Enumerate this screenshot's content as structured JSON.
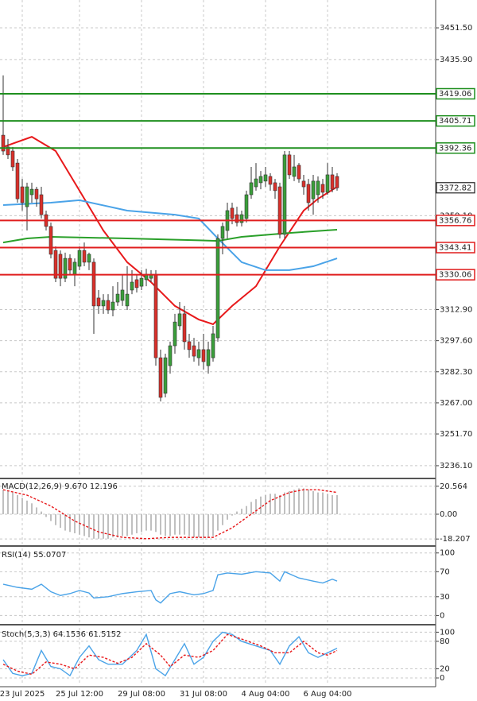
{
  "chart_data": [
    {
      "type": "candlestick",
      "categories": [
        null,
        null,
        null,
        null,
        "23 Jul 2025",
        null,
        null,
        null,
        null,
        null,
        null,
        null,
        null,
        null,
        null,
        null,
        "25 Jul 12:00",
        null,
        null,
        null,
        null,
        null,
        null,
        null,
        null,
        null,
        null,
        null,
        null,
        "29 Jul 08:00",
        null,
        null,
        null,
        null,
        null,
        null,
        null,
        null,
        null,
        null,
        null,
        null,
        "31 Jul 08:00",
        null,
        null,
        null,
        null,
        null,
        null,
        null,
        null,
        null,
        null,
        null,
        null,
        "4 Aug 04:00",
        null,
        null,
        null,
        null,
        null,
        null,
        null,
        null,
        null,
        null,
        null,
        null,
        "6 Aug 04:00",
        null,
        null
      ],
      "open": [
        3398.7,
        3392.9,
        3390.9,
        3385.0,
        3373.3,
        3363.5,
        3369.4,
        3372.1,
        3369.4,
        3359.6,
        3353.8,
        3342.0,
        3340.1,
        3328.3,
        3338.1,
        3330.3,
        3334.2,
        3342.0,
        3336.2,
        3336.2,
        3318.6,
        3314.7,
        3317.4,
        3312.7,
        3316.6,
        3317.4,
        3314.7,
        3322.5,
        3327.6,
        3324.4,
        3327.6,
        3328.3,
        3330.3,
        3289.2,
        3271.7,
        3285.3,
        3295.1,
        3304.9,
        3310.8,
        3297.1,
        3295.1,
        3289.2,
        3293.2,
        3285.3,
        3289.2,
        3299.0,
        3347.9,
        3351.8,
        3362.8,
        3359.6,
        3355.7,
        3357.7,
        3369.4,
        3373.3,
        3375.3,
        3376.1,
        3378.4,
        3375.3,
        3373.3,
        3349.9,
        3389.0,
        3378.4,
        3383.9,
        3376.1,
        3374.5,
        3367.4,
        3369.4,
        3374.5,
        3370.6,
        3379.2,
        3378.4
      ],
      "high": [
        3428.1,
        3396.8,
        3392.9,
        3387.0,
        3377.2,
        3375.3,
        3375.3,
        3373.3,
        3373.3,
        3361.6,
        3355.7,
        3344.0,
        3342.0,
        3340.9,
        3340.1,
        3338.1,
        3344.0,
        3345.9,
        3340.9,
        3338.1,
        3322.5,
        3320.5,
        3320.5,
        3324.4,
        3326.4,
        3330.3,
        3334.2,
        3332.3,
        3330.3,
        3332.3,
        3333.0,
        3332.3,
        3332.3,
        3293.2,
        3291.2,
        3297.1,
        3310.8,
        3316.6,
        3314.7,
        3301.0,
        3299.0,
        3297.1,
        3301.0,
        3297.1,
        3304.9,
        3349.9,
        3355.7,
        3365.5,
        3365.5,
        3363.5,
        3361.6,
        3371.4,
        3383.1,
        3385.0,
        3381.1,
        3383.1,
        3380.0,
        3377.2,
        3375.3,
        3390.9,
        3390.9,
        3389.0,
        3385.0,
        3379.2,
        3377.2,
        3379.2,
        3378.4,
        3377.2,
        3385.0,
        3383.1,
        3380.0
      ],
      "low": [
        3389.0,
        3387.0,
        3381.1,
        3365.5,
        3361.6,
        3351.8,
        3365.5,
        3363.5,
        3357.7,
        3351.8,
        3338.1,
        3326.4,
        3324.4,
        3326.4,
        3330.3,
        3324.4,
        3332.3,
        3334.2,
        3332.3,
        3301.0,
        3310.8,
        3310.8,
        3310.8,
        3309.6,
        3314.7,
        3314.7,
        3312.7,
        3320.5,
        3321.3,
        3322.5,
        3324.4,
        3326.4,
        3285.3,
        3267.7,
        3269.7,
        3281.4,
        3291.2,
        3302.9,
        3293.2,
        3289.2,
        3287.3,
        3285.3,
        3283.4,
        3281.4,
        3287.3,
        3297.1,
        3340.1,
        3347.9,
        3354.9,
        3353.8,
        3353.8,
        3355.7,
        3367.4,
        3371.4,
        3372.1,
        3373.3,
        3371.4,
        3367.4,
        3347.9,
        3347.9,
        3377.2,
        3376.1,
        3375.3,
        3369.4,
        3361.6,
        3359.6,
        3365.5,
        3367.4,
        3369.4,
        3370.6,
        3371.4
      ],
      "close": [
        3390.9,
        3389.0,
        3383.1,
        3367.4,
        3365.5,
        3373.3,
        3372.1,
        3367.4,
        3359.6,
        3353.8,
        3340.1,
        3328.3,
        3328.3,
        3338.1,
        3332.3,
        3336.2,
        3342.0,
        3336.2,
        3340.1,
        3314.7,
        3314.7,
        3317.4,
        3312.7,
        3316.6,
        3320.5,
        3322.5,
        3320.5,
        3326.4,
        3323.7,
        3328.3,
        3330.3,
        3330.3,
        3289.2,
        3269.7,
        3289.2,
        3295.1,
        3306.8,
        3310.8,
        3297.1,
        3293.2,
        3290.0,
        3293.2,
        3287.3,
        3293.2,
        3301.0,
        3347.9,
        3353.8,
        3361.6,
        3357.7,
        3355.7,
        3359.6,
        3369.4,
        3375.3,
        3377.2,
        3378.4,
        3379.2,
        3374.5,
        3371.4,
        3349.9,
        3389.0,
        3379.2,
        3383.1,
        3377.2,
        3373.3,
        3365.5,
        3376.1,
        3376.1,
        3370.6,
        3379.2,
        3372.1,
        3372.8
      ],
      "up_color": "#3a9e3a",
      "down_color": "#d9302a",
      "ylim": [
        3230.6,
        3465.2
      ],
      "yticks": [
        {
          "value": 3451.5,
          "label": "3451.50"
        },
        {
          "value": 3435.9,
          "label": "3435.90"
        },
        {
          "value": 3359.1,
          "label": "3359.10"
        },
        {
          "value": 3312.9,
          "label": "3312.90"
        },
        {
          "value": 3297.6,
          "label": "3297.60"
        },
        {
          "value": 3282.3,
          "label": "3282.30"
        },
        {
          "value": 3267.0,
          "label": "3267.00"
        },
        {
          "value": 3251.7,
          "label": "3251.70"
        },
        {
          "value": 3236.1,
          "label": "3236.10"
        }
      ],
      "grid": true,
      "overlays": [
        {
          "color": "#e8191b",
          "x": [
            0,
            6,
            11,
            16,
            21,
            26,
            31,
            36,
            41,
            44,
            48,
            53,
            58,
            63,
            66,
            70
          ],
          "values": [
            3392.9,
            3397.9,
            3390.9,
            3371.4,
            3351.8,
            3336.2,
            3326.4,
            3314.7,
            3308.0,
            3305.7,
            3314.7,
            3324.4,
            3344.0,
            3361.6,
            3367.4,
            3373.3
          ]
        },
        {
          "color": "#4aa3e8",
          "x": [
            0,
            10,
            16,
            26,
            36,
            41,
            45,
            50,
            55,
            60,
            65,
            70
          ],
          "values": [
            3364.3,
            3365.5,
            3366.7,
            3361.6,
            3359.6,
            3357.7,
            3347.9,
            3336.2,
            3332.3,
            3332.3,
            3334.2,
            3338.1
          ]
        },
        {
          "color": "#2aa02a",
          "x": [
            0,
            5,
            10,
            26,
            45,
            50,
            60,
            70
          ],
          "values": [
            3345.9,
            3347.9,
            3348.7,
            3347.9,
            3346.7,
            3348.7,
            3350.6,
            3352.2
          ]
        }
      ],
      "levels": [
        {
          "value": 3419.06,
          "color": "#1f8f1f"
        },
        {
          "value": 3405.71,
          "color": "#1f8f1f"
        },
        {
          "value": 3392.36,
          "color": "#1f8f1f"
        },
        {
          "value": 3356.76,
          "color": "#e01e1e"
        },
        {
          "value": 3343.41,
          "color": "#e01e1e"
        },
        {
          "value": 3330.06,
          "color": "#e01e1e"
        }
      ],
      "last_price": 3372.82
    },
    {
      "type": "macd",
      "title": "MACD(12,26,9) 9.670 12.196",
      "ylim": [
        -22.77,
        25.1
      ],
      "yticks": [
        20.564,
        {
          "value": 0,
          "label": "0.00"
        },
        -18.207
      ],
      "histogram": {
        "color": "#b0b0b0",
        "values": [
          18,
          17,
          16,
          14,
          12,
          10,
          8,
          5,
          2,
          -2,
          -5,
          -8,
          -10,
          -12,
          -13,
          -14,
          -15,
          -16,
          -17,
          -18,
          -18,
          -18,
          -18,
          -17,
          -17,
          -16,
          -16,
          -15,
          -14,
          -13,
          -12,
          -12,
          -13,
          -15,
          -16,
          -16,
          -15,
          -15,
          -15,
          -16,
          -17,
          -17,
          -17,
          -17,
          -16,
          -12,
          -8,
          -4,
          -1,
          2,
          4,
          6,
          9,
          11,
          13,
          14,
          15,
          15,
          14,
          16,
          17,
          18,
          19,
          19,
          18,
          17,
          16,
          16,
          15,
          14,
          14
        ]
      },
      "series": [
        {
          "color": "#e8191b",
          "dashed": true,
          "x": [
            0,
            5,
            10,
            15,
            20,
            25,
            30,
            35,
            40,
            44,
            48,
            52,
            56,
            60,
            63,
            66,
            70
          ],
          "values": [
            18,
            14,
            6,
            -5,
            -13,
            -17,
            -18,
            -17,
            -17,
            -17,
            -10,
            0,
            10,
            16,
            18,
            18,
            16
          ]
        }
      ]
    },
    {
      "type": "line",
      "title": "RSI(14) 55.0707",
      "ylim": [
        -12.2,
        107.3
      ],
      "yticks": [
        100,
        70,
        30,
        0
      ],
      "series": [
        {
          "color": "#4aa3e8",
          "x": [
            0,
            3,
            6,
            8,
            10,
            12,
            14,
            16,
            18,
            19,
            22,
            25,
            28,
            31,
            32,
            33,
            35,
            37,
            40,
            42,
            44,
            45,
            47,
            50,
            53,
            56,
            58,
            59,
            62,
            65,
            67,
            69,
            70
          ],
          "values": [
            50,
            45,
            42,
            50,
            38,
            32,
            35,
            40,
            36,
            28,
            30,
            35,
            38,
            40,
            25,
            20,
            35,
            38,
            33,
            35,
            40,
            65,
            68,
            66,
            70,
            68,
            55,
            70,
            60,
            55,
            52,
            58,
            55
          ]
        }
      ]
    },
    {
      "type": "line",
      "title": "Stoch(5,3,3) 64.1536 61.5152",
      "ylim": [
        -15.6,
        109.4
      ],
      "yticks": [
        100,
        80,
        20,
        0
      ],
      "series": [
        {
          "color": "#4aa3e8",
          "x": [
            0,
            2,
            4,
            6,
            8,
            10,
            12,
            14,
            16,
            18,
            20,
            22,
            25,
            28,
            30,
            32,
            34,
            36,
            38,
            40,
            42,
            44,
            46,
            48,
            50,
            53,
            56,
            58,
            60,
            62,
            64,
            66,
            68,
            70
          ],
          "values": [
            40,
            10,
            5,
            10,
            60,
            25,
            20,
            5,
            45,
            70,
            40,
            30,
            30,
            60,
            95,
            20,
            5,
            40,
            75,
            30,
            45,
            80,
            100,
            95,
            80,
            70,
            60,
            30,
            70,
            90,
            55,
            45,
            55,
            65
          ]
        },
        {
          "color": "#e8191b",
          "dashed": true,
          "x": [
            0,
            3,
            6,
            9,
            12,
            15,
            18,
            21,
            24,
            27,
            30,
            33,
            35,
            38,
            41,
            44,
            47,
            50,
            54,
            57,
            60,
            63,
            66,
            68,
            70
          ],
          "values": [
            30,
            15,
            8,
            35,
            30,
            20,
            50,
            45,
            32,
            45,
            75,
            50,
            25,
            50,
            45,
            60,
            95,
            85,
            70,
            55,
            55,
            80,
            55,
            50,
            60
          ]
        }
      ]
    }
  ]
}
